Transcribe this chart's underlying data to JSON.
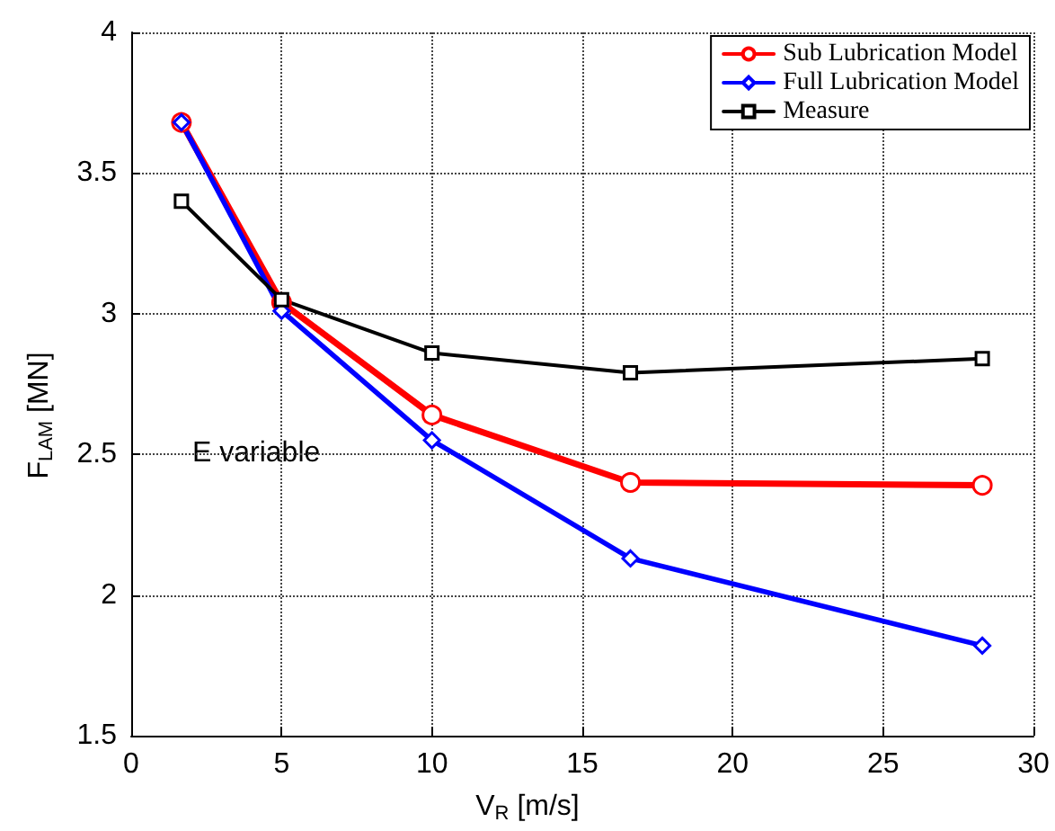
{
  "chart_data": {
    "type": "line",
    "xlabel": "V$_{R}$ [m/s]",
    "ylabel": "F$_{LAM}$ [MN]",
    "x": [
      1.67,
      5.0,
      10.0,
      16.6,
      28.3
    ],
    "series": [
      {
        "name": "Sub Lubrication Model",
        "color": "#ff0000",
        "marker": "circle",
        "values": [
          3.68,
          3.04,
          2.64,
          2.4,
          2.39
        ]
      },
      {
        "name": "Full Lubrication Model",
        "color": "#0000ff",
        "marker": "diamond",
        "values": [
          3.68,
          3.01,
          2.55,
          2.13,
          1.82
        ]
      },
      {
        "name": "Measure",
        "color": "#000000",
        "marker": "square",
        "values": [
          3.4,
          3.05,
          2.86,
          2.79,
          2.84
        ]
      }
    ],
    "xlim": [
      0,
      30
    ],
    "xticks": [
      0,
      5,
      10,
      15,
      20,
      25,
      30
    ],
    "ylim": [
      1.5,
      4
    ],
    "yticks": [
      1.5,
      2,
      2.5,
      3,
      3.5,
      4
    ],
    "grid": true,
    "legend": "top right",
    "line_style": "solid",
    "annotations": [
      "E variable"
    ]
  }
}
